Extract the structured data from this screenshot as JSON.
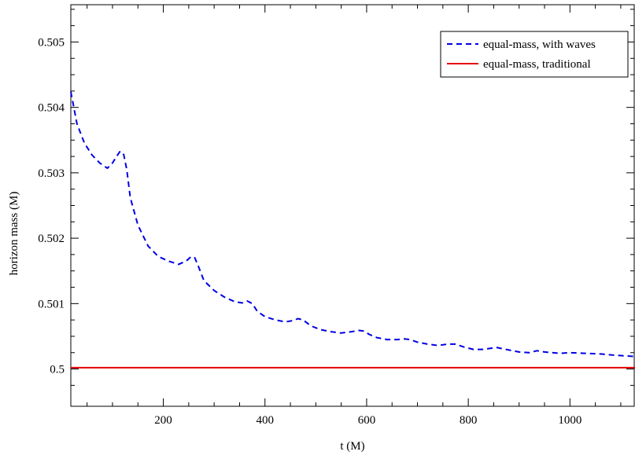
{
  "chart_data": {
    "type": "line",
    "xlabel": "t (M)",
    "ylabel": "horizon mass (M)",
    "xlim": [
      18,
      1128
    ],
    "ylim": [
      0.49943,
      0.50557
    ],
    "x_ticks": [
      200,
      400,
      600,
      800,
      1000
    ],
    "x_tick_labels": [
      "200",
      "400",
      "600",
      "800",
      "1000"
    ],
    "y_ticks": [
      0.5,
      0.501,
      0.502,
      0.503,
      0.504,
      0.505
    ],
    "y_tick_labels": [
      "0.5",
      "0.501",
      "0.502",
      "0.503",
      "0.504",
      "0.505"
    ],
    "grid": false,
    "legend_position": "top-right",
    "series": [
      {
        "name": "equal-mass, with waves",
        "color": "#0000e6",
        "style": "dashed",
        "x": [
          18,
          30,
          45,
          60,
          75,
          90,
          100,
          108,
          115,
          122,
          128,
          135,
          150,
          170,
          190,
          210,
          230,
          245,
          255,
          262,
          270,
          280,
          300,
          320,
          340,
          355,
          365,
          375,
          385,
          400,
          420,
          440,
          455,
          465,
          475,
          490,
          510,
          530,
          550,
          570,
          585,
          595,
          605,
          620,
          640,
          660,
          675,
          685,
          700,
          720,
          740,
          760,
          775,
          790,
          810,
          830,
          855,
          880,
          900,
          920,
          935,
          950,
          980,
          1000,
          1030,
          1060,
          1090,
          1110,
          1128
        ],
        "y": [
          0.50424,
          0.50375,
          0.50345,
          0.50327,
          0.50315,
          0.50307,
          0.50315,
          0.50325,
          0.50333,
          0.50328,
          0.50305,
          0.50262,
          0.5022,
          0.50188,
          0.50172,
          0.50165,
          0.5016,
          0.50165,
          0.50172,
          0.5017,
          0.50155,
          0.50135,
          0.5012,
          0.5011,
          0.50103,
          0.50101,
          0.50104,
          0.501,
          0.50088,
          0.5008,
          0.50075,
          0.50072,
          0.50074,
          0.50077,
          0.50075,
          0.50066,
          0.5006,
          0.50057,
          0.50055,
          0.50057,
          0.50059,
          0.50058,
          0.50053,
          0.50048,
          0.50045,
          0.50045,
          0.50046,
          0.50045,
          0.50041,
          0.50038,
          0.50036,
          0.50038,
          0.50038,
          0.50034,
          0.5003,
          0.5003,
          0.50033,
          0.50029,
          0.50026,
          0.50025,
          0.50028,
          0.50026,
          0.50024,
          0.50025,
          0.50024,
          0.50023,
          0.50021,
          0.5002,
          0.50019
        ]
      },
      {
        "name": "equal-mass, traditional",
        "color": "#e60000",
        "style": "solid",
        "x": [
          18,
          100,
          200,
          300,
          400,
          500,
          600,
          700,
          800,
          900,
          1000,
          1128
        ],
        "y": [
          0.50002,
          0.50002,
          0.50002,
          0.50002,
          0.50002,
          0.50002,
          0.50002,
          0.50002,
          0.50002,
          0.50002,
          0.50002,
          0.50002
        ]
      }
    ]
  }
}
